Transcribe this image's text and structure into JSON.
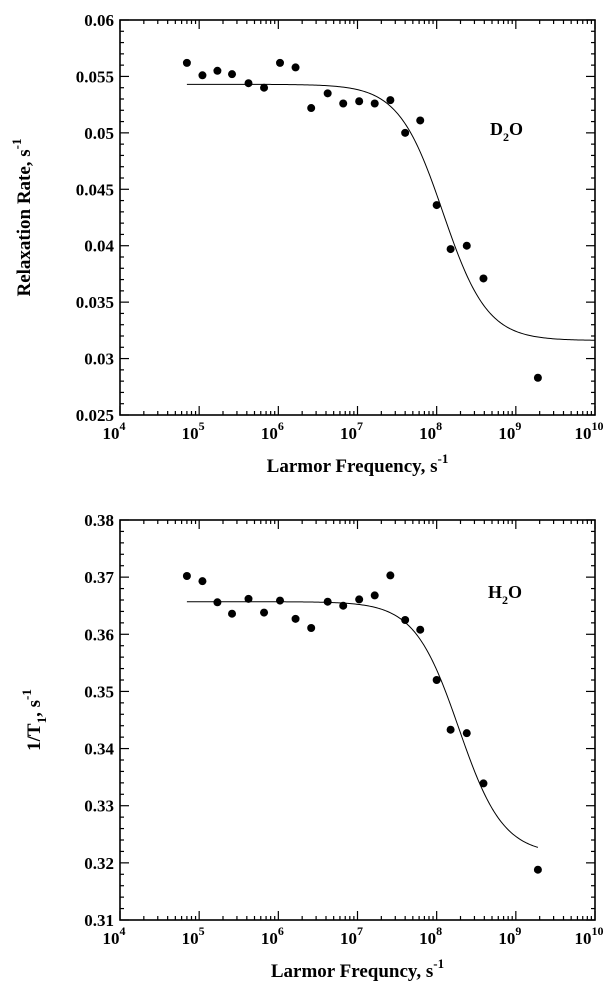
{
  "chart_data": [
    {
      "type": "scatter",
      "x_scale": "log",
      "xlim": [
        10000,
        10000000000
      ],
      "ylim": [
        0.025,
        0.06
      ],
      "x_ticks": [
        "10",
        "10",
        "10",
        "10",
        "10",
        "10",
        "10"
      ],
      "x_tick_exponents": [
        "4",
        "5",
        "6",
        "7",
        "8",
        "9",
        "10"
      ],
      "y_ticks": [
        "0.025",
        "0.03",
        "0.035",
        "0.04",
        "0.045",
        "0.05",
        "0.055",
        "0.06"
      ],
      "xlabel": "Larmor Frequency, s",
      "xlabel_sup": "-1",
      "ylabel": "Relaxation Rate, s",
      "ylabel_sup": "-1",
      "label_main": "D",
      "label_sub": "2",
      "label_end": "O",
      "series": [
        {
          "points": [
            [
              70000,
              0.0562
            ],
            [
              110000,
              0.0551
            ],
            [
              170000,
              0.0555
            ],
            [
              260000,
              0.0552
            ],
            [
              420000,
              0.0544
            ],
            [
              660000,
              0.054
            ],
            [
              1050000,
              0.0562
            ],
            [
              1650000,
              0.0558
            ],
            [
              2600000,
              0.0522
            ],
            [
              4200000,
              0.0535
            ],
            [
              6600000,
              0.0526
            ],
            [
              10500000,
              0.0528
            ],
            [
              16500000,
              0.0526
            ],
            [
              26000000,
              0.0529
            ],
            [
              40000000,
              0.05
            ],
            [
              62000000,
              0.0511
            ],
            [
              100000000,
              0.0436
            ],
            [
              150000000,
              0.0397
            ],
            [
              240000000,
              0.04
            ],
            [
              390000000,
              0.0371
            ],
            [
              1900000000,
              0.0283
            ]
          ],
          "fit": {
            "plateau_high": 0.0543,
            "plateau_low": 0.0316,
            "midpoint": 120000000,
            "x_start": 70000,
            "x_end": 10000000000
          }
        }
      ]
    },
    {
      "type": "scatter",
      "x_scale": "log",
      "xlim": [
        10000,
        10000000000
      ],
      "ylim": [
        0.31,
        0.38
      ],
      "x_ticks": [
        "10",
        "10",
        "10",
        "10",
        "10",
        "10",
        "10"
      ],
      "x_tick_exponents": [
        "4",
        "5",
        "6",
        "7",
        "8",
        "9",
        "10"
      ],
      "y_ticks": [
        "0.31",
        "0.32",
        "0.33",
        "0.34",
        "0.35",
        "0.36",
        "0.37",
        "0.38"
      ],
      "xlabel": "Larmor Frequncy, s",
      "xlabel_sup": "-1",
      "ylabel": "1/T",
      "ylabel_sub": "1",
      "ylabel_end": ", s",
      "ylabel_sup": "-1",
      "label_main": "H",
      "label_sub": "2",
      "label_end": "O",
      "series": [
        {
          "points": [
            [
              70000,
              0.3702
            ],
            [
              110000,
              0.3693
            ],
            [
              170000,
              0.3656
            ],
            [
              260000,
              0.3636
            ],
            [
              420000,
              0.3662
            ],
            [
              660000,
              0.3638
            ],
            [
              1050000,
              0.3659
            ],
            [
              1650000,
              0.3627
            ],
            [
              2600000,
              0.3611
            ],
            [
              4200000,
              0.3657
            ],
            [
              6600000,
              0.365
            ],
            [
              10500000,
              0.3661
            ],
            [
              16500000,
              0.3668
            ],
            [
              26000000,
              0.3703
            ],
            [
              40000000,
              0.3625
            ],
            [
              62000000,
              0.3608
            ],
            [
              100000000,
              0.352
            ],
            [
              150000000,
              0.3433
            ],
            [
              240000000,
              0.3427
            ],
            [
              390000000,
              0.3339
            ],
            [
              1900000000,
              0.3188
            ]
          ],
          "fit": {
            "plateau_high": 0.3657,
            "plateau_low": 0.3215,
            "midpoint": 190000000,
            "x_start": 70000,
            "x_end": 1900000000
          }
        }
      ]
    }
  ]
}
